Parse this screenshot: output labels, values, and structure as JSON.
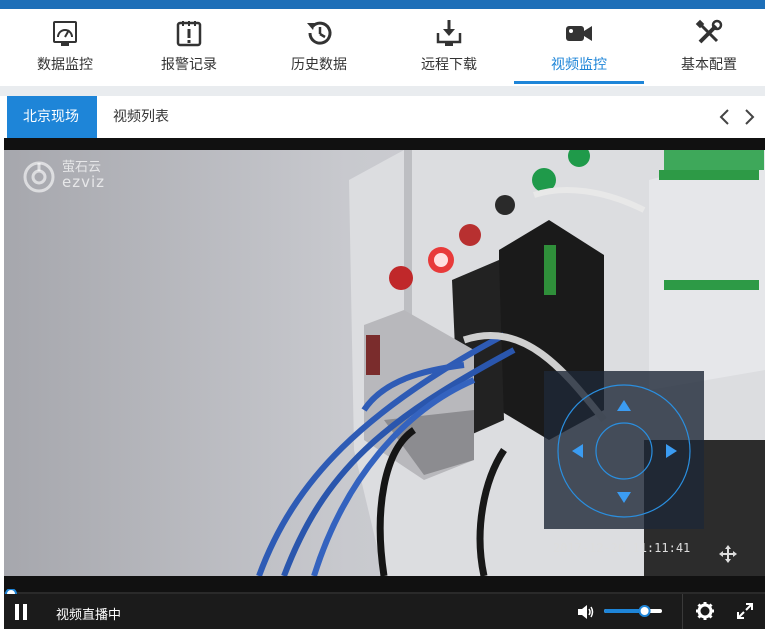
{
  "nav": {
    "items": [
      {
        "label": "数据监控",
        "icon": "gauge-icon"
      },
      {
        "label": "报警记录",
        "icon": "alarm-log-icon"
      },
      {
        "label": "历史数据",
        "icon": "history-icon"
      },
      {
        "label": "远程下载",
        "icon": "download-icon"
      },
      {
        "label": "视频监控",
        "icon": "camera-icon",
        "active": true
      },
      {
        "label": "基本配置",
        "icon": "tools-icon"
      }
    ]
  },
  "tabs": {
    "active": "北京现场",
    "other": "视频列表"
  },
  "player": {
    "logo_line1": "萤石云",
    "logo_line2": "ezviz",
    "timestamp": "2017-12-20 11:11:41",
    "status": "视频直播中",
    "volume_level": 0.7,
    "progress": 0.0
  },
  "colors": {
    "accent": "#1e85d8",
    "topbar": "#1e6fb8",
    "control_bar": "#1b1b1b"
  }
}
